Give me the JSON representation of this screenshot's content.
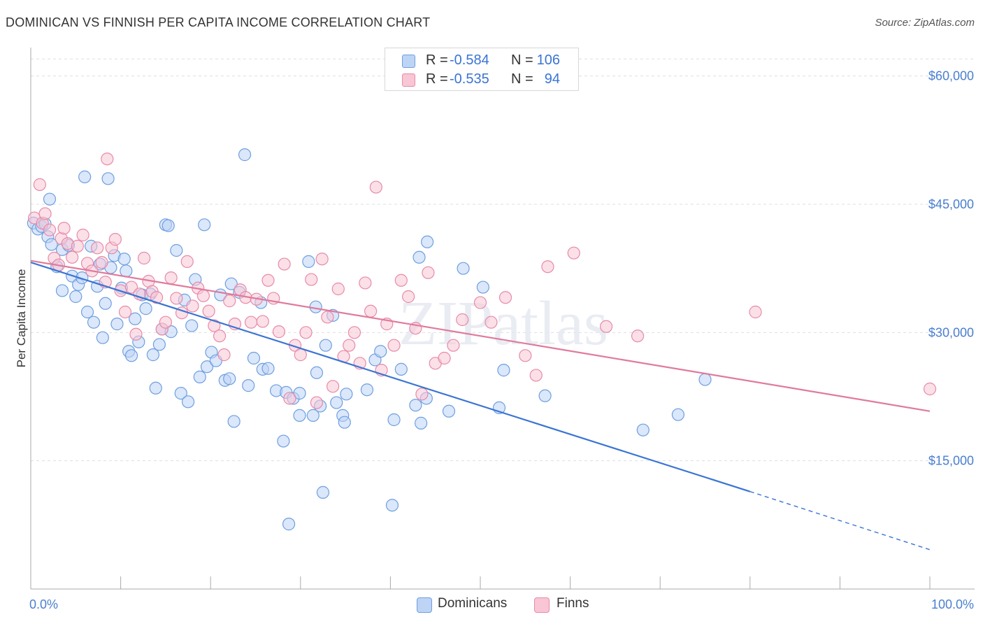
{
  "title": "DOMINICAN VS FINNISH PER CAPITA INCOME CORRELATION CHART",
  "source": "Source: ZipAtlas.com",
  "watermark": "ZIPatlas",
  "legend_top": [
    {
      "r_label": "R =",
      "r_value": "-0.584",
      "n_label": "N =",
      "n_value": "106",
      "color": "#6e9fe0",
      "fill": "#bdd4f5"
    },
    {
      "r_label": "R =",
      "r_value": "-0.535",
      "n_label": "N =",
      "n_value": "94",
      "color": "#e88aa8",
      "fill": "#f8c6d5"
    }
  ],
  "legend_bottom": [
    {
      "label": "Dominicans",
      "color": "#6e9fe0",
      "fill": "#bdd4f5"
    },
    {
      "label": "Finns",
      "color": "#e88aa8",
      "fill": "#f8c6d5"
    }
  ],
  "chart_data": {
    "type": "scatter",
    "title": "DOMINICAN VS FINNISH PER CAPITA INCOME CORRELATION CHART",
    "xlabel": "",
    "ylabel": "Per Capita Income",
    "xlim": [
      0,
      100
    ],
    "ylim": [
      0,
      63000
    ],
    "x_tick_labels": [
      "0.0%",
      "100.0%"
    ],
    "y_ticks": [
      15000,
      30000,
      45000,
      60000
    ],
    "y_tick_labels": [
      "$15,000",
      "$30,000",
      "$45,000",
      "$60,000"
    ],
    "grid": true,
    "series": [
      {
        "name": "Dominicans",
        "color": "#3a74d4",
        "fill": "#bdd4f5",
        "stroke": "#6e9fe0",
        "r": -0.584,
        "n": 106,
        "trend": {
          "x0": 0,
          "y0": 38200,
          "x1": 80,
          "y1": 11400,
          "dash_x1": 100,
          "dash_y1": 4600
        },
        "points": [
          [
            0.3,
            42.8
          ],
          [
            0.8,
            42.1
          ],
          [
            1.2,
            42.4
          ],
          [
            1.6,
            42.7
          ],
          [
            1.9,
            41.2
          ],
          [
            2.1,
            45.6
          ],
          [
            2.3,
            40.3
          ],
          [
            2.9,
            37.7
          ],
          [
            3.5,
            39.7
          ],
          [
            3.5,
            34.9
          ],
          [
            4.2,
            40.2
          ],
          [
            4.6,
            36.6
          ],
          [
            5.0,
            34.2
          ],
          [
            5.3,
            35.6
          ],
          [
            5.7,
            36.4
          ],
          [
            6.0,
            48.2
          ],
          [
            6.3,
            32.4
          ],
          [
            6.7,
            40.1
          ],
          [
            7.0,
            31.2
          ],
          [
            7.4,
            35.4
          ],
          [
            7.7,
            38.0
          ],
          [
            8.0,
            29.4
          ],
          [
            8.3,
            33.4
          ],
          [
            8.6,
            48.0
          ],
          [
            8.9,
            37.6
          ],
          [
            9.3,
            39.0
          ],
          [
            9.6,
            31.0
          ],
          [
            10.1,
            35.2
          ],
          [
            10.4,
            38.6
          ],
          [
            10.6,
            37.2
          ],
          [
            10.9,
            27.8
          ],
          [
            11.2,
            27.3
          ],
          [
            11.6,
            31.6
          ],
          [
            12.0,
            28.9
          ],
          [
            12.4,
            34.4
          ],
          [
            12.8,
            32.8
          ],
          [
            13.3,
            34.5
          ],
          [
            13.6,
            27.4
          ],
          [
            13.9,
            23.5
          ],
          [
            14.3,
            28.6
          ],
          [
            14.6,
            30.4
          ],
          [
            15.0,
            42.6
          ],
          [
            15.3,
            42.5
          ],
          [
            15.6,
            30.1
          ],
          [
            16.2,
            39.6
          ],
          [
            16.7,
            22.9
          ],
          [
            17.1,
            33.8
          ],
          [
            17.5,
            21.9
          ],
          [
            17.9,
            30.8
          ],
          [
            18.3,
            36.2
          ],
          [
            18.8,
            24.8
          ],
          [
            19.3,
            42.6
          ],
          [
            19.6,
            26.0
          ],
          [
            20.1,
            27.7
          ],
          [
            20.6,
            26.7
          ],
          [
            21.1,
            34.4
          ],
          [
            21.6,
            24.4
          ],
          [
            22.1,
            24.6
          ],
          [
            22.3,
            35.7
          ],
          [
            22.6,
            19.6
          ],
          [
            23.2,
            34.7
          ],
          [
            23.8,
            50.8
          ],
          [
            24.2,
            23.8
          ],
          [
            24.8,
            27.0
          ],
          [
            25.6,
            33.5
          ],
          [
            25.8,
            25.7
          ],
          [
            26.4,
            25.8
          ],
          [
            27.3,
            23.2
          ],
          [
            28.1,
            17.3
          ],
          [
            28.4,
            23.0
          ],
          [
            28.7,
            7.6
          ],
          [
            29.2,
            22.3
          ],
          [
            29.9,
            22.9
          ],
          [
            29.9,
            20.3
          ],
          [
            30.9,
            38.3
          ],
          [
            31.4,
            20.3
          ],
          [
            31.7,
            33.0
          ],
          [
            31.8,
            25.3
          ],
          [
            32.2,
            21.4
          ],
          [
            32.5,
            11.3
          ],
          [
            32.8,
            28.5
          ],
          [
            33.6,
            32.0
          ],
          [
            34.0,
            21.8
          ],
          [
            34.7,
            20.3
          ],
          [
            35.1,
            22.8
          ],
          [
            34.9,
            19.5
          ],
          [
            37.4,
            23.3
          ],
          [
            38.3,
            26.8
          ],
          [
            38.9,
            27.8
          ],
          [
            40.2,
            9.8
          ],
          [
            40.4,
            19.8
          ],
          [
            41.2,
            25.7
          ],
          [
            42.8,
            21.5
          ],
          [
            43.2,
            38.8
          ],
          [
            43.4,
            19.4
          ],
          [
            44.0,
            22.3
          ],
          [
            44.1,
            40.6
          ],
          [
            46.5,
            20.8
          ],
          [
            48.1,
            37.5
          ],
          [
            50.3,
            35.3
          ],
          [
            52.1,
            21.2
          ],
          [
            52.6,
            25.6
          ],
          [
            57.2,
            22.6
          ],
          [
            68.1,
            18.6
          ],
          [
            72.0,
            20.4
          ],
          [
            75.0,
            24.5
          ]
        ]
      },
      {
        "name": "Finns",
        "color": "#e07a9c",
        "fill": "#f8c6d5",
        "stroke": "#e88aa8",
        "r": -0.535,
        "n": 94,
        "trend": {
          "x0": 0,
          "y0": 38400,
          "x1": 100,
          "y1": 20800
        },
        "points": [
          [
            0.4,
            43.4
          ],
          [
            1.0,
            47.3
          ],
          [
            1.3,
            42.8
          ],
          [
            1.6,
            43.9
          ],
          [
            2.1,
            42.0
          ],
          [
            2.6,
            38.7
          ],
          [
            3.1,
            37.9
          ],
          [
            3.4,
            41.0
          ],
          [
            3.7,
            42.2
          ],
          [
            4.1,
            40.4
          ],
          [
            4.6,
            38.8
          ],
          [
            5.2,
            40.1
          ],
          [
            5.8,
            41.4
          ],
          [
            6.3,
            38.1
          ],
          [
            6.8,
            37.2
          ],
          [
            7.4,
            39.9
          ],
          [
            7.9,
            38.2
          ],
          [
            8.3,
            35.9
          ],
          [
            8.5,
            50.3
          ],
          [
            9.0,
            39.9
          ],
          [
            9.4,
            40.9
          ],
          [
            10.0,
            34.9
          ],
          [
            10.5,
            32.4
          ],
          [
            11.2,
            35.3
          ],
          [
            11.7,
            29.8
          ],
          [
            12.1,
            34.5
          ],
          [
            12.6,
            38.7
          ],
          [
            13.1,
            36.0
          ],
          [
            13.5,
            34.8
          ],
          [
            14.0,
            34.1
          ],
          [
            14.6,
            30.4
          ],
          [
            15.0,
            31.2
          ],
          [
            15.6,
            36.4
          ],
          [
            16.2,
            34.0
          ],
          [
            16.8,
            32.3
          ],
          [
            17.4,
            38.3
          ],
          [
            18.0,
            33.1
          ],
          [
            18.6,
            35.2
          ],
          [
            19.2,
            34.3
          ],
          [
            19.8,
            32.5
          ],
          [
            20.4,
            30.8
          ],
          [
            21.0,
            29.6
          ],
          [
            21.5,
            27.4
          ],
          [
            22.1,
            33.7
          ],
          [
            22.7,
            31.0
          ],
          [
            23.3,
            35.0
          ],
          [
            23.9,
            34.1
          ],
          [
            24.5,
            31.2
          ],
          [
            25.1,
            33.9
          ],
          [
            25.8,
            31.3
          ],
          [
            26.4,
            36.1
          ],
          [
            27.0,
            34.0
          ],
          [
            27.6,
            30.1
          ],
          [
            28.2,
            38.0
          ],
          [
            28.8,
            22.3
          ],
          [
            29.4,
            28.5
          ],
          [
            30.0,
            27.4
          ],
          [
            30.6,
            30.0
          ],
          [
            31.2,
            36.2
          ],
          [
            31.8,
            21.8
          ],
          [
            32.4,
            38.6
          ],
          [
            33.0,
            31.8
          ],
          [
            33.6,
            23.7
          ],
          [
            34.2,
            35.1
          ],
          [
            34.8,
            27.2
          ],
          [
            35.4,
            28.5
          ],
          [
            36.0,
            30.0
          ],
          [
            36.6,
            26.4
          ],
          [
            37.2,
            35.8
          ],
          [
            37.8,
            32.5
          ],
          [
            38.4,
            47.0
          ],
          [
            39.0,
            25.6
          ],
          [
            39.6,
            31.0
          ],
          [
            40.4,
            28.5
          ],
          [
            41.2,
            36.1
          ],
          [
            42.0,
            34.2
          ],
          [
            42.8,
            30.5
          ],
          [
            43.5,
            22.8
          ],
          [
            44.2,
            37.0
          ],
          [
            45.0,
            26.4
          ],
          [
            46.0,
            27.0
          ],
          [
            47.0,
            28.5
          ],
          [
            48.0,
            31.5
          ],
          [
            50.0,
            33.5
          ],
          [
            51.2,
            31.2
          ],
          [
            52.8,
            34.1
          ],
          [
            55.0,
            27.3
          ],
          [
            56.2,
            25.0
          ],
          [
            57.5,
            37.7
          ],
          [
            60.4,
            39.3
          ],
          [
            64.0,
            30.7
          ],
          [
            67.5,
            29.6
          ],
          [
            80.6,
            32.4
          ],
          [
            100.0,
            23.4
          ]
        ]
      }
    ]
  }
}
